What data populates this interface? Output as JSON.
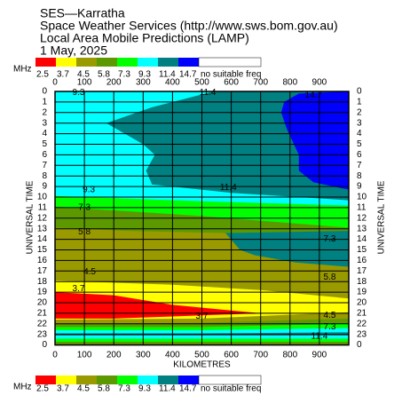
{
  "chart_data": {
    "type": "contour",
    "title": [
      "SES—Karratha",
      "Space Weather Services (http://www.sws.bom.gov.au)",
      "Local Area Mobile Predictions (LAMP)",
      "1 May, 2025"
    ],
    "xlabel": "KILOMETRES",
    "ylabel": "UNIVERSAL TIME",
    "legend_unit": "MHz",
    "levels": [
      2.5,
      3.7,
      4.5,
      5.8,
      7.3,
      9.3,
      11.4,
      14.7
    ],
    "colors": [
      "#ff0000",
      "#ffff00",
      "#999900",
      "#5c9900",
      "#00ff00",
      "#00ffff",
      "#008080",
      "#0000ff"
    ],
    "no_data_label": "no suitable freq",
    "no_data_color": "#ffffff",
    "xlim": [
      0,
      1000
    ],
    "xticks": [
      0,
      100,
      200,
      300,
      400,
      500,
      600,
      700,
      800,
      900
    ],
    "ylim": [
      0,
      24
    ],
    "yticks": [
      0,
      1,
      2,
      3,
      4,
      5,
      6,
      7,
      8,
      9,
      10,
      11,
      12,
      13,
      14,
      15,
      16,
      17,
      18,
      19,
      20,
      21,
      22,
      23,
      {
        "value": 24,
        "label": "0"
      }
    ],
    "grid": true,
    "contour_labels": [
      9.3,
      11.4,
      14.7,
      9.3,
      11.4,
      7.3,
      5.8,
      7.3,
      4.5,
      5.8,
      3.7,
      3.7,
      4.5,
      7.3,
      11.4
    ]
  }
}
